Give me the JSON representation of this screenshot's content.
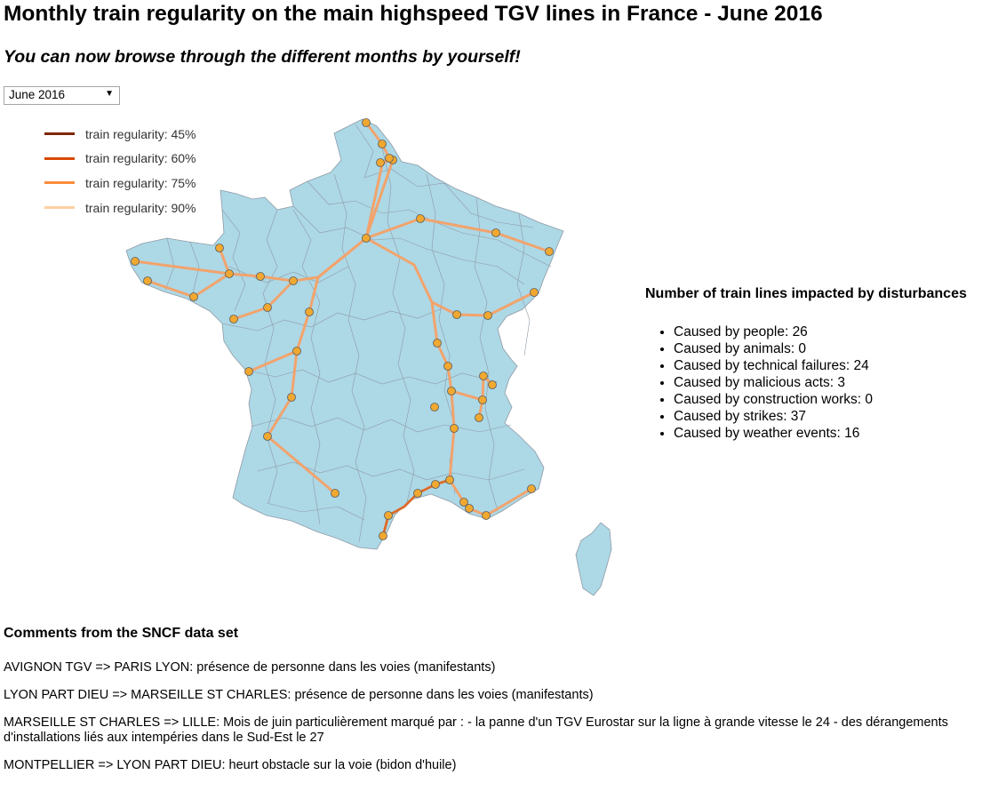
{
  "header": {
    "title": "Monthly train regularity on the main highspeed TGV lines in France - June 2016",
    "subtitle": "You can now browse through the different months by yourself!"
  },
  "month_select": {
    "value": "June 2016",
    "arrow": "▼"
  },
  "legend": {
    "items": [
      {
        "label": "train regularity: 45%",
        "color": "#7f2704"
      },
      {
        "label": "train regularity: 60%",
        "color": "#d94801"
      },
      {
        "label": "train regularity: 75%",
        "color": "#fd8d3c"
      },
      {
        "label": "train regularity: 90%",
        "color": "#fdd0a2"
      }
    ]
  },
  "map": {
    "land_color": "#add8e6",
    "border_color": "#8e9aa6",
    "station_color": "#f0a830",
    "line_color_default": "#f2a36c"
  },
  "disturbances": {
    "title": "Number of train lines impacted by disturbances",
    "items": [
      "Caused by people: 26",
      "Caused by animals: 0",
      "Caused by technical failures: 24",
      "Caused by malicious acts: 3",
      "Caused by construction works: 0",
      "Caused by strikes: 37",
      "Caused by weather events: 16"
    ]
  },
  "comments": {
    "title": "Comments from the SNCF data set",
    "items": [
      "AVIGNON TGV => PARIS LYON: présence de personne dans les voies (manifestants)",
      "LYON PART DIEU => MARSEILLE ST CHARLES: présence de personne dans les voies (manifestants)",
      "MARSEILLE ST CHARLES => LILLE: Mois de juin particulièrement marqué par :  - la panne d'un TGV Eurostar sur la ligne à grande vitesse le 24 - des dérangements d'installations liés aux intempéries dans le Sud-Est le 27",
      "MONTPELLIER => LYON PART DIEU: heurt obstacle sur la voie (bidon d'huile)"
    ]
  }
}
